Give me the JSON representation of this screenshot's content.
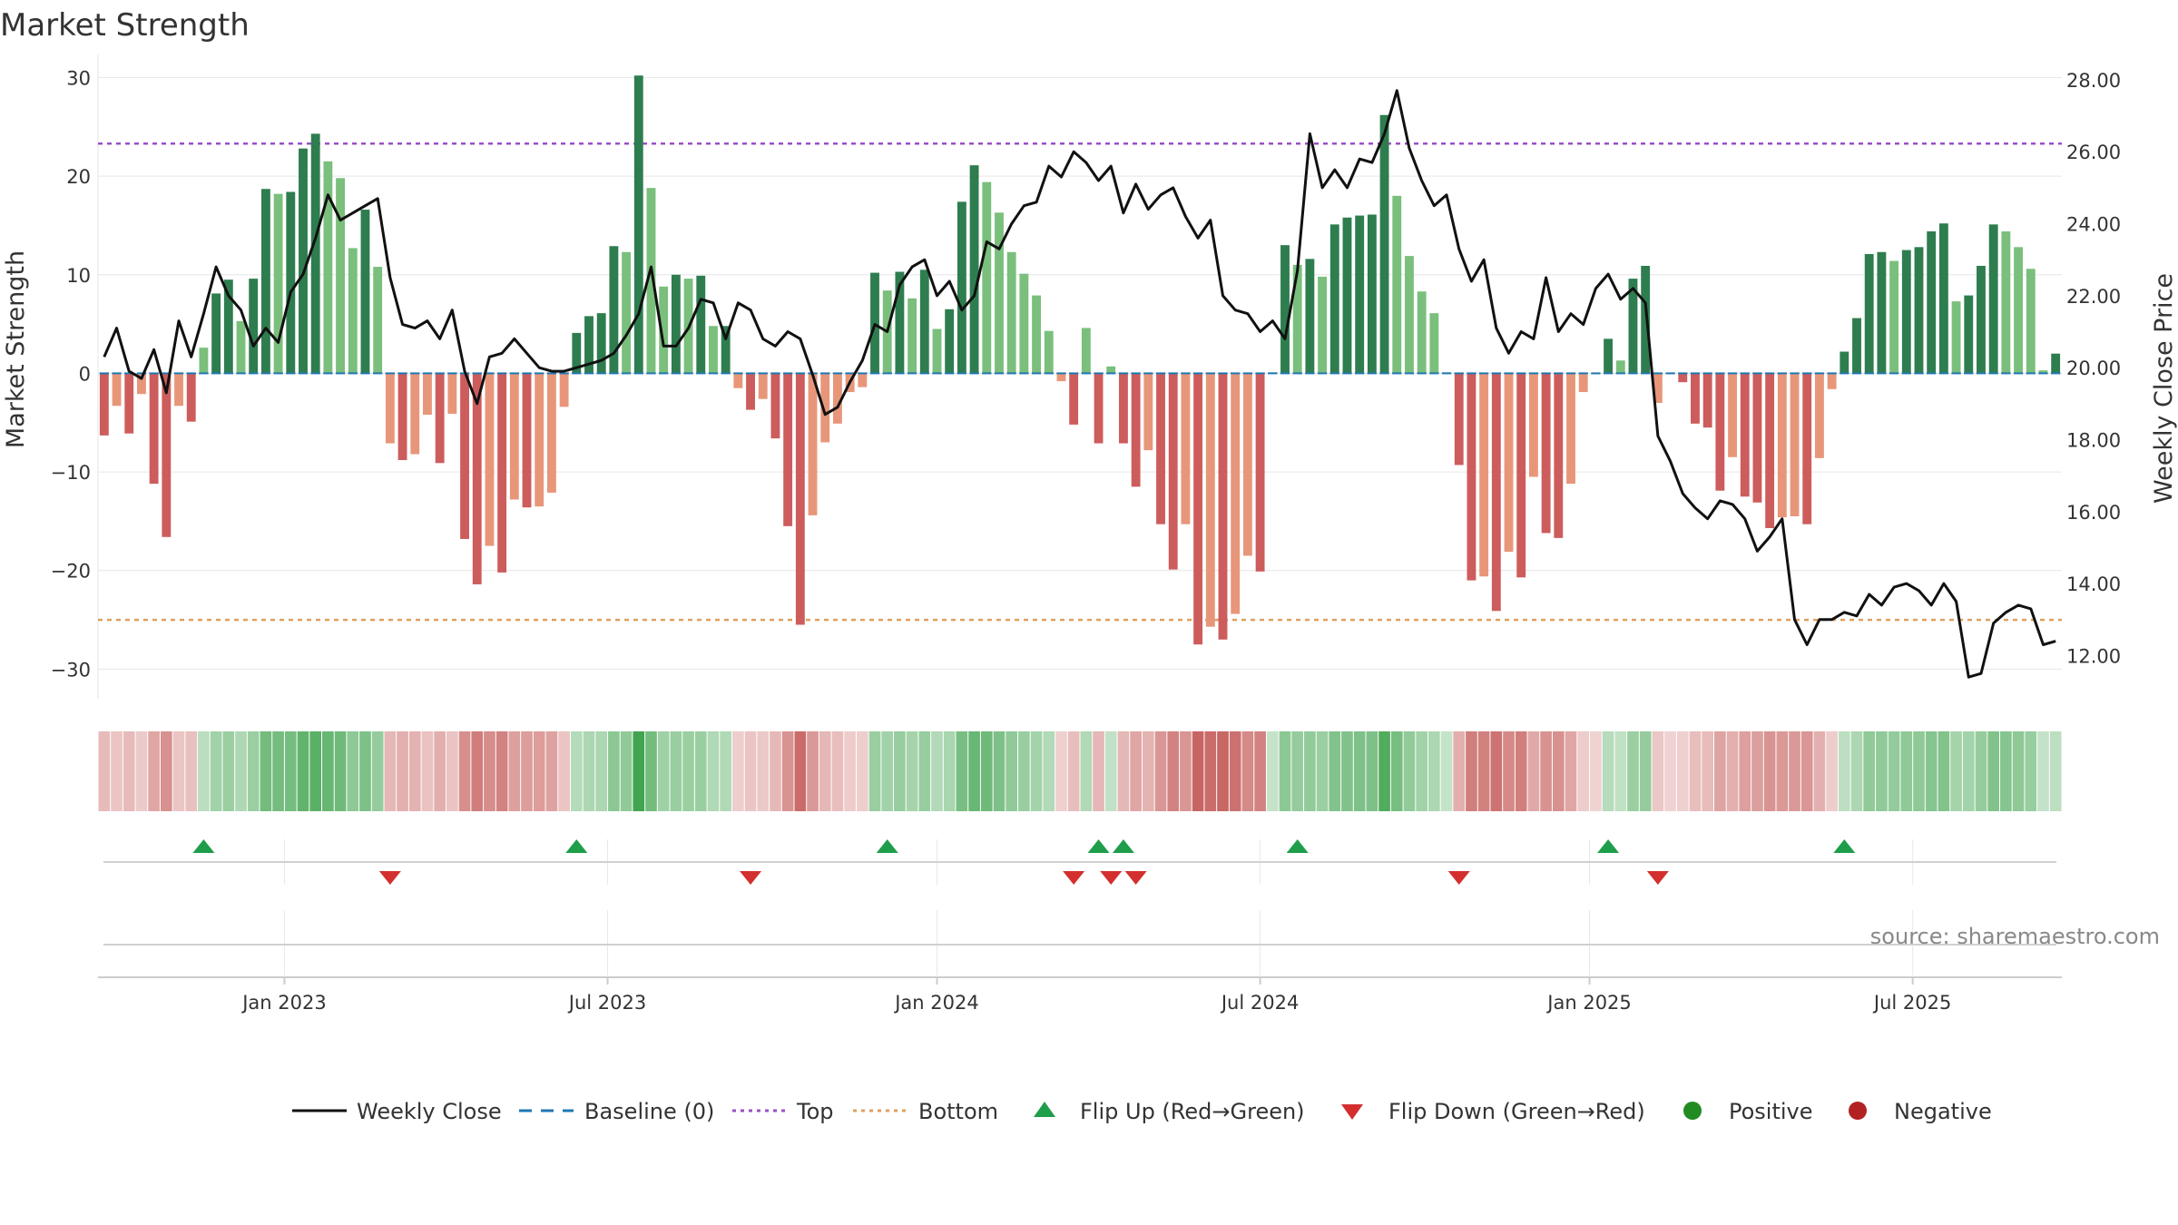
{
  "colors": {
    "strong_green": "#2e7d4f",
    "light_green": "#7abf7c",
    "strong_red": "#cd5c5c",
    "light_red": "#e8967a",
    "close_line": "#111111",
    "baseline": "#1f77b4",
    "top": "#9b4fc8",
    "bottom": "#e0a060",
    "flip_up": "#1e9e4a",
    "flip_down": "#d32f2f",
    "positive": "#228b22",
    "negative": "#b22222"
  },
  "chart_data": {
    "type": "bar",
    "title": "Market Strength",
    "ylabel": "Market Strength",
    "y2label": "Weekly Close Price",
    "ylim": [
      -33,
      30.5
    ],
    "y2lim": [
      10.8,
      28.2
    ],
    "yticks": [
      30,
      20,
      10,
      0,
      -10,
      -20,
      -30
    ],
    "ytick_labels": [
      "30",
      "20",
      "10",
      "0",
      "−10",
      "−20",
      "−30"
    ],
    "y2ticks": [
      28,
      26,
      24,
      22,
      20,
      18,
      16,
      14,
      12
    ],
    "y2tick_labels": [
      "28.00",
      "26.00",
      "24.00",
      "22.00",
      "20.00",
      "18.00",
      "16.00",
      "14.00",
      "12.00"
    ],
    "xticks": [
      {
        "week": 15,
        "label": "Jan 2023"
      },
      {
        "week": 41,
        "label": "Jul 2023"
      },
      {
        "week": 67.5,
        "label": "Jan 2024"
      },
      {
        "week": 93.5,
        "label": "Jul 2024"
      },
      {
        "week": 120,
        "label": "Jan 2025"
      },
      {
        "week": 146,
        "label": "Jul 2025"
      }
    ],
    "top_line": 23.3,
    "bottom_line": -25,
    "baseline": 0,
    "strength": [
      -6.3,
      -3.3,
      -6.1,
      -2.1,
      -11.2,
      -16.6,
      -3.3,
      -4.9,
      2.6,
      8.1,
      9.5,
      5.3,
      9.6,
      18.7,
      18.2,
      18.4,
      22.8,
      24.3,
      21.5,
      19.8,
      12.7,
      16.6,
      10.8,
      -7.1,
      -8.8,
      -8.2,
      -4.2,
      -9.1,
      -4.1,
      -16.8,
      -21.4,
      -17.5,
      -20.2,
      -12.8,
      -13.6,
      -13.5,
      -12.1,
      -3.4,
      4.1,
      5.8,
      6.1,
      12.9,
      12.3,
      30.2,
      18.8,
      8.8,
      10.0,
      9.6,
      9.9,
      4.8,
      4.8,
      -1.5,
      -3.7,
      -2.6,
      -6.6,
      -15.5,
      -25.5,
      -14.4,
      -7.0,
      -5.1,
      -1.9,
      -1.4,
      10.2,
      8.4,
      10.3,
      7.6,
      10.5,
      4.5,
      6.5,
      17.4,
      21.1,
      19.4,
      16.3,
      12.3,
      10.1,
      7.9,
      4.3,
      -0.8,
      -5.2,
      4.6,
      -7.1,
      0.7,
      -7.1,
      -11.5,
      -7.8,
      -15.3,
      -19.9,
      -15.3,
      -27.5,
      -25.7,
      -27.0,
      -24.4,
      -18.5,
      -20.1,
      0.1,
      13.0,
      11.0,
      11.6,
      9.8,
      15.1,
      15.8,
      16.0,
      16.1,
      26.2,
      18.0,
      11.9,
      8.3,
      6.1,
      0.1,
      -9.3,
      -21.0,
      -20.6,
      -24.1,
      -18.1,
      -20.7,
      -10.5,
      -16.2,
      -16.7,
      -11.2,
      -1.9,
      -0.1,
      3.5,
      1.3,
      9.6,
      10.9,
      -3.0,
      -0.1,
      -0.9,
      -5.1,
      -5.5,
      -11.9,
      -8.5,
      -12.5,
      -13.1,
      -15.7,
      -14.6,
      -14.5,
      -15.3,
      -8.6,
      -1.6,
      2.2,
      5.6,
      12.1,
      12.3,
      11.4,
      12.5,
      12.8,
      14.4,
      15.2,
      7.3,
      7.9,
      10.9,
      15.1,
      14.4,
      12.8,
      10.6,
      0.3,
      2.0
    ],
    "close": [
      20.3,
      21.1,
      19.9,
      19.7,
      20.5,
      19.3,
      21.3,
      20.3,
      21.5,
      22.8,
      22.0,
      21.6,
      20.6,
      21.1,
      20.7,
      22.1,
      22.6,
      23.6,
      24.8,
      24.1,
      24.3,
      24.5,
      24.7,
      22.5,
      21.2,
      21.1,
      21.3,
      20.8,
      21.6,
      19.9,
      19.0,
      20.3,
      20.4,
      20.8,
      20.4,
      20.0,
      19.9,
      19.9,
      20.0,
      20.1,
      20.2,
      20.4,
      20.9,
      21.5,
      22.8,
      20.6,
      20.6,
      21.1,
      21.9,
      21.8,
      20.8,
      21.8,
      21.6,
      20.8,
      20.6,
      21.0,
      20.8,
      19.8,
      18.7,
      18.9,
      19.6,
      20.2,
      21.2,
      21.0,
      22.3,
      22.8,
      23.0,
      22.0,
      22.4,
      21.6,
      22.0,
      23.5,
      23.3,
      24.0,
      24.5,
      24.6,
      25.6,
      25.3,
      26.0,
      25.7,
      25.2,
      25.6,
      24.3,
      25.1,
      24.4,
      24.8,
      25.0,
      24.2,
      23.6,
      24.1,
      22.0,
      21.6,
      21.5,
      21.0,
      21.3,
      20.8,
      22.7,
      26.5,
      25.0,
      25.5,
      25.0,
      25.8,
      25.7,
      26.5,
      27.7,
      26.1,
      25.2,
      24.5,
      24.8,
      23.3,
      22.4,
      23.0,
      21.1,
      20.4,
      21.0,
      20.8,
      22.5,
      21.0,
      21.5,
      21.2,
      22.2,
      22.6,
      21.9,
      22.2,
      21.8,
      18.1,
      17.4,
      16.5,
      16.1,
      15.8,
      16.3,
      16.2,
      15.8,
      14.9,
      15.3,
      15.8,
      13.0,
      12.3,
      13.0,
      13.0,
      13.2,
      13.1,
      13.7,
      13.4,
      13.9,
      14.0,
      13.8,
      13.4,
      14.0,
      13.5,
      11.4,
      11.5,
      12.9,
      13.2,
      13.4,
      13.3,
      12.3,
      12.4
    ],
    "flip_up_weeks": [
      8,
      38,
      63,
      80,
      82,
      96,
      121,
      140
    ],
    "flip_down_weeks": [
      23,
      52,
      78,
      81,
      83,
      109,
      125
    ],
    "source": "source: sharemaestro.com",
    "legend": [
      {
        "key": "close",
        "label": "Weekly Close"
      },
      {
        "key": "baseline",
        "label": "Baseline (0)"
      },
      {
        "key": "top",
        "label": "Top"
      },
      {
        "key": "bottom",
        "label": "Bottom"
      },
      {
        "key": "flip_up",
        "label": "Flip Up (Red→Green)"
      },
      {
        "key": "flip_down",
        "label": "Flip Down (Green→Red)"
      },
      {
        "key": "positive",
        "label": "Positive"
      },
      {
        "key": "negative",
        "label": "Negative"
      }
    ]
  }
}
